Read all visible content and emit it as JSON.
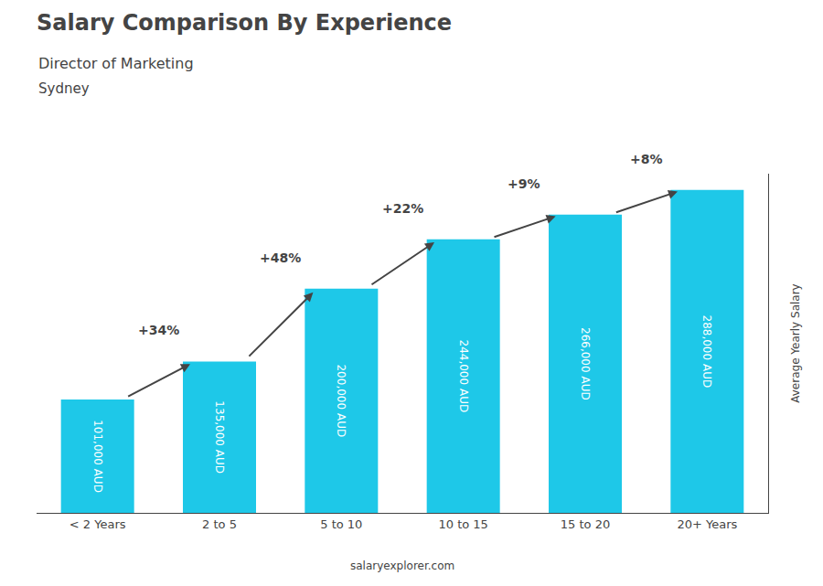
{
  "chart_data": {
    "type": "bar",
    "title": "Salary Comparison By Experience",
    "subtitle": [
      "Director of Marketing",
      "Sydney"
    ],
    "ylabel": "Average Yearly Salary",
    "categories": [
      "< 2 Years",
      "2 to 5",
      "5 to 10",
      "10 to 15",
      "15 to 20",
      "20+ Years"
    ],
    "values": [
      101000,
      135000,
      200000,
      244000,
      266000,
      288000
    ],
    "value_labels": [
      "101,000 AUD",
      "135,000 AUD",
      "200,000 AUD",
      "244,000 AUD",
      "266,000 AUD",
      "288,000 AUD"
    ],
    "data_labels": true,
    "annotations": [
      "+34%",
      "+48%",
      "+22%",
      "+9%",
      "+8%"
    ],
    "footer": "salaryexplorer.com",
    "color": "#1EC8E8",
    "ylim": [
      0,
      302400
    ],
    "yticks": [],
    "grid": false,
    "tick_labels": "x"
  }
}
